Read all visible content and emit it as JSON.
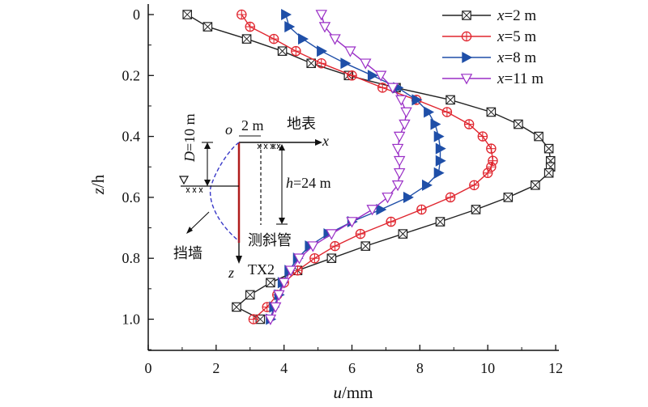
{
  "chart_data": {
    "type": "line",
    "xlabel_var": "u",
    "xlabel_unit": "/mm",
    "ylabel_var": "z",
    "ylabel_rest": "/h",
    "xlim": [
      0,
      12
    ],
    "ylim": [
      0,
      1.1
    ],
    "y_inverted": true,
    "x_ticks": [
      "0",
      "2",
      "4",
      "6",
      "8",
      "10",
      "12"
    ],
    "y_ticks": [
      "0",
      "0.2",
      "0.4",
      "0.6",
      "0.8",
      "1.0"
    ],
    "grid": false,
    "legend_position": "top-right",
    "series": [
      {
        "name": "x=2 m",
        "var": "x",
        "unit": "=2 m",
        "color": "#222222",
        "marker": "square-x",
        "z": [
          0,
          0.04,
          0.08,
          0.12,
          0.16,
          0.2,
          0.24,
          0.28,
          0.32,
          0.36,
          0.4,
          0.44,
          0.48,
          0.5,
          0.52,
          0.56,
          0.6,
          0.64,
          0.68,
          0.72,
          0.76,
          0.8,
          0.84,
          0.88,
          0.92,
          0.96,
          1.0
        ],
        "u": [
          1.15,
          1.75,
          2.9,
          3.95,
          4.8,
          5.9,
          7.3,
          8.9,
          10.1,
          10.9,
          11.5,
          11.8,
          11.85,
          11.85,
          11.8,
          11.4,
          10.6,
          9.65,
          8.6,
          7.5,
          6.4,
          5.4,
          4.4,
          3.6,
          3.0,
          2.6,
          3.3
        ]
      },
      {
        "name": "x=5 m",
        "var": "x",
        "unit": "=5 m",
        "color": "#e0262f",
        "marker": "circle-plus",
        "z": [
          0,
          0.04,
          0.08,
          0.12,
          0.16,
          0.2,
          0.24,
          0.28,
          0.32,
          0.36,
          0.4,
          0.44,
          0.48,
          0.5,
          0.52,
          0.56,
          0.6,
          0.64,
          0.68,
          0.72,
          0.76,
          0.8,
          0.84,
          0.88,
          0.92,
          0.96,
          1.0
        ],
        "u": [
          2.75,
          3.0,
          3.7,
          4.35,
          5.1,
          6.0,
          6.9,
          7.9,
          8.8,
          9.45,
          9.85,
          10.1,
          10.15,
          10.1,
          10.0,
          9.6,
          8.9,
          8.05,
          7.15,
          6.25,
          5.5,
          4.9,
          4.4,
          4.0,
          3.8,
          3.5,
          3.1
        ]
      },
      {
        "name": "x=8 m",
        "var": "x",
        "unit": "=8 m",
        "color": "#1f4fa8",
        "marker": "triangle-right",
        "z": [
          0,
          0.04,
          0.08,
          0.12,
          0.16,
          0.2,
          0.24,
          0.28,
          0.32,
          0.36,
          0.4,
          0.44,
          0.48,
          0.52,
          0.56,
          0.6,
          0.64,
          0.68,
          0.72,
          0.76,
          0.8,
          0.84,
          0.88,
          0.92,
          0.96,
          1.0
        ],
        "u": [
          4.05,
          4.15,
          4.55,
          5.1,
          5.8,
          6.6,
          7.35,
          7.9,
          8.25,
          8.45,
          8.55,
          8.6,
          8.6,
          8.55,
          8.2,
          7.65,
          6.85,
          6.0,
          5.3,
          4.75,
          4.4,
          4.15,
          3.95,
          3.85,
          3.7,
          3.6
        ]
      },
      {
        "name": "x=11 m",
        "var": "x",
        "unit": "=11 m",
        "color": "#9a2fc6",
        "marker": "triangle-down",
        "z": [
          0,
          0.04,
          0.08,
          0.12,
          0.16,
          0.2,
          0.24,
          0.28,
          0.32,
          0.36,
          0.4,
          0.44,
          0.48,
          0.52,
          0.56,
          0.6,
          0.64,
          0.68,
          0.72,
          0.76,
          0.8,
          0.84,
          0.88,
          0.92,
          0.96,
          1.0
        ],
        "u": [
          5.1,
          5.2,
          5.5,
          5.95,
          6.4,
          6.85,
          7.2,
          7.45,
          7.6,
          7.55,
          7.4,
          7.35,
          7.4,
          7.4,
          7.35,
          7.05,
          6.6,
          6.0,
          5.4,
          4.85,
          4.45,
          4.2,
          4.0,
          3.85,
          3.75,
          3.6
        ]
      }
    ],
    "inset": {
      "origin_label": "o",
      "offset_label": "2 m",
      "surface_label": "地表",
      "x_axis_label": "x",
      "depth_var": "D",
      "depth_rest": "=10 m",
      "height_var": "h",
      "height_rest": "=24 m",
      "wall_label": "挡墙",
      "inclinometer_label": "测斜管",
      "z_axis_label": "z",
      "probe_label": "TX2"
    }
  }
}
